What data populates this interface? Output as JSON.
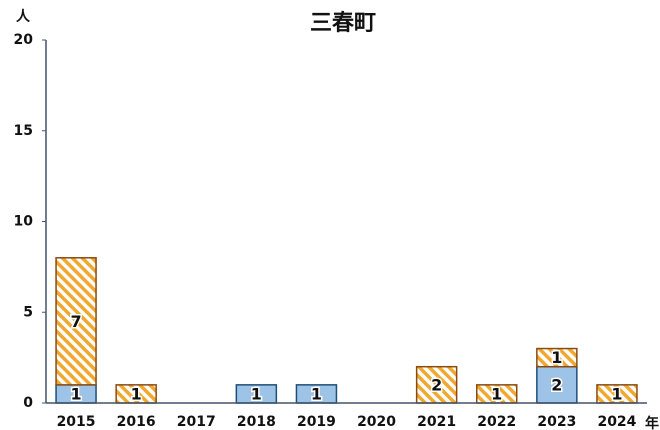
{
  "chart_data": {
    "type": "stacked_bar",
    "title": "三春町",
    "y_unit": "人",
    "x_unit": "年",
    "categories": [
      "2015",
      "2016",
      "2017",
      "2018",
      "2019",
      "2020",
      "2021",
      "2022",
      "2023",
      "2024"
    ],
    "series": [
      {
        "color": "#9dc3e6",
        "values": [
          1,
          0,
          0,
          1,
          1,
          0,
          0,
          0,
          2,
          0
        ]
      },
      {
        "color": "#f0a830",
        "hatched": true,
        "values": [
          7,
          1,
          0,
          0,
          0,
          0,
          2,
          1,
          1,
          1
        ]
      }
    ],
    "ylim": [
      0,
      20
    ],
    "yticks": [
      0,
      5,
      10,
      15,
      20
    ],
    "grid": false
  }
}
